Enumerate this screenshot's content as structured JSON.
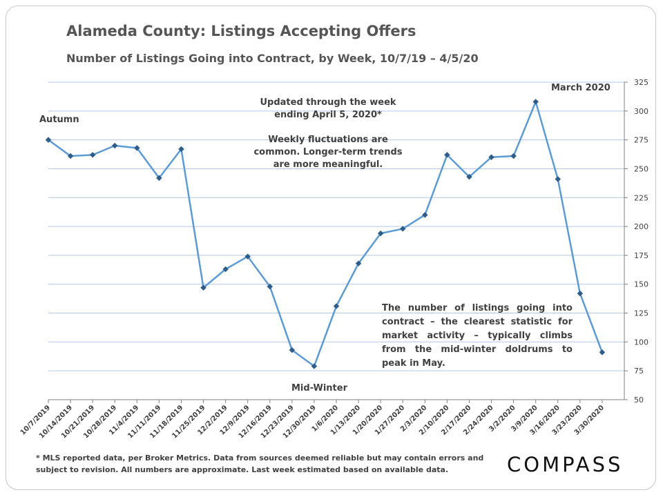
{
  "title": "Alameda County: Listings Accepting Offers",
  "subtitle": "Number of Listings Going into Contract, by Week, 10/7/19 – 4/5/20",
  "annotations": {
    "autumn": "Autumn",
    "mid_winter": "Mid-Winter",
    "march_2020": "March 2020",
    "updated_note_1": "Updated through the week ending April 5, 2020*",
    "updated_note_2": "Weekly fluctuations are common. Longer-term trends are more meaningful.",
    "market_note": "The number of listings going into contract – the clearest statistic for market activity – typically climbs from the mid-winter doldrums to peak in May."
  },
  "footnote": "* MLS reported data, per Broker Metrics. Data from sources deemed reliable but may contain errors and subject to revision. All numbers are approximate. Last week estimated based on available data.",
  "logo": "COMPASS",
  "colors": {
    "line": "#5b9bd5",
    "marker": "#2e5d8a",
    "grid": "#b4c7e7",
    "text": "#404040"
  },
  "chart_data": {
    "type": "line",
    "title": "Alameda County: Listings Accepting Offers",
    "subtitle": "Number of Listings Going into Contract, by Week, 10/7/19 – 4/5/20",
    "categories": [
      "10/7/2019",
      "10/14/2019",
      "10/21/2019",
      "10/28/2019",
      "11/4/2019",
      "11/11/2019",
      "11/18/2019",
      "11/25/2019",
      "12/2/2019",
      "12/9/2019",
      "12/16/2019",
      "12/23/2019",
      "12/30/2019",
      "1/6/2020",
      "1/13/2020",
      "1/20/2020",
      "1/27/2020",
      "2/3/2020",
      "2/10/2020",
      "2/17/2020",
      "2/24/2020",
      "3/2/2020",
      "3/9/2020",
      "3/16/2020",
      "3/23/2020",
      "3/30/2020"
    ],
    "values": [
      275,
      261,
      262,
      270,
      268,
      242,
      267,
      147,
      163,
      174,
      148,
      93,
      79,
      131,
      168,
      194,
      198,
      210,
      262,
      243,
      260,
      261,
      308,
      241,
      142,
      91
    ],
    "ylim": [
      50,
      325
    ],
    "yticks": [
      50,
      75,
      100,
      125,
      150,
      175,
      200,
      225,
      250,
      275,
      300,
      325
    ],
    "y_axis_side": "right",
    "grid": true,
    "legend": "none"
  }
}
